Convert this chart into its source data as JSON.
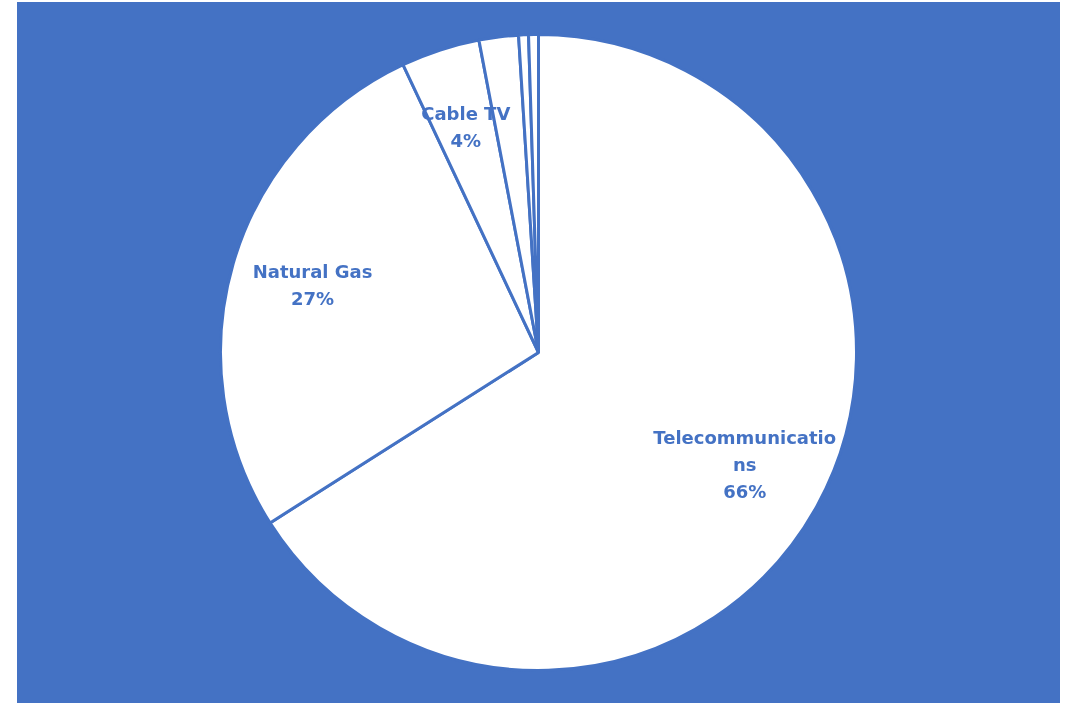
{
  "chart_data": {
    "type": "pie",
    "categories": [
      "Telecommunications",
      "Natural Gas",
      "Cable TV",
      null,
      null,
      null
    ],
    "values": [
      66,
      27,
      4,
      2,
      0.5,
      0.5
    ],
    "colors": [
      "#ffffff",
      "#ffffff",
      "#ffffff",
      "#ffffff",
      "#ffffff",
      "#ffffff"
    ],
    "value_labels": [
      "66%",
      "27%",
      "4%",
      null,
      null,
      null
    ],
    "legend": false
  }
}
